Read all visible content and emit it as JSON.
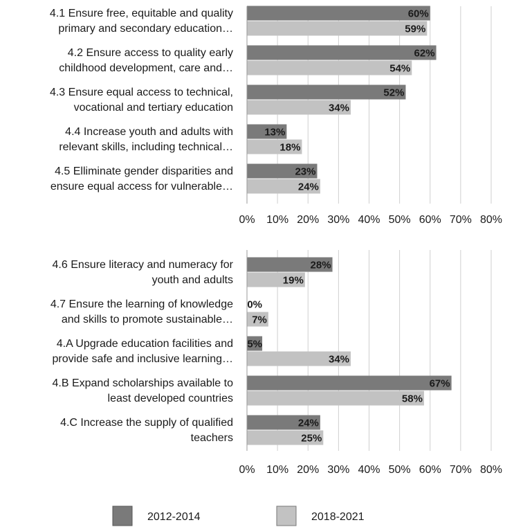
{
  "legend": {
    "series_1": "2012-2014",
    "series_2": "2018-2021"
  },
  "colors": {
    "series_1": "#7a7a7a",
    "series_2": "#c2c2c2",
    "grid": "#cfcfcf",
    "text": "#1a1a1a"
  },
  "chart_data": [
    {
      "type": "bar",
      "orientation": "horizontal",
      "categories": [
        [
          "4.1 Ensure free, equitable and quality",
          "primary and secondary education…"
        ],
        [
          "4.2 Ensure access to quality early",
          "childhood development, care and…"
        ],
        [
          "4.3 Ensure equal access to technical,",
          "vocational and tertiary education"
        ],
        [
          "4.4 Increase youth and adults with",
          "relevant skills, including technical…"
        ],
        [
          "4.5 Elliminate gender disparities and",
          "ensure equal access for vulnerable…"
        ]
      ],
      "series": [
        {
          "name": "2012-2014",
          "values": [
            60,
            62,
            52,
            13,
            23
          ],
          "labels": [
            "60%",
            "62%",
            "52%",
            "13%",
            "23%"
          ]
        },
        {
          "name": "2018-2021",
          "values": [
            59,
            54,
            34,
            18,
            24
          ],
          "labels": [
            "59%",
            "54%",
            "34%",
            "18%",
            "24%"
          ]
        }
      ],
      "xlim": [
        0,
        80
      ],
      "ticks": [
        "0%",
        "10%",
        "20%",
        "30%",
        "40%",
        "50%",
        "60%",
        "70%",
        "80%"
      ],
      "grid": true
    },
    {
      "type": "bar",
      "orientation": "horizontal",
      "categories": [
        [
          "4.6 Ensure literacy and numeracy for",
          "youth and adults"
        ],
        [
          "4.7 Ensure the learning of knowledge",
          "and skills to promote sustainable…"
        ],
        [
          "4.A Upgrade education facilities and",
          "provide safe and inclusive learning…"
        ],
        [
          "4.B Expand scholarships available to",
          "least developed countries"
        ],
        [
          "4.C Increase the supply of qualified",
          "teachers"
        ]
      ],
      "series": [
        {
          "name": "2012-2014",
          "values": [
            28,
            0,
            5,
            67,
            24
          ],
          "labels": [
            "28%",
            "0%",
            "5%",
            "67%",
            "24%"
          ]
        },
        {
          "name": "2018-2021",
          "values": [
            19,
            7,
            34,
            58,
            25
          ],
          "labels": [
            "19%",
            "7%",
            "34%",
            "58%",
            "25%"
          ]
        }
      ],
      "xlim": [
        0,
        80
      ],
      "ticks": [
        "0%",
        "10%",
        "20%",
        "30%",
        "40%",
        "50%",
        "60%",
        "70%",
        "80%"
      ],
      "grid": true
    }
  ]
}
